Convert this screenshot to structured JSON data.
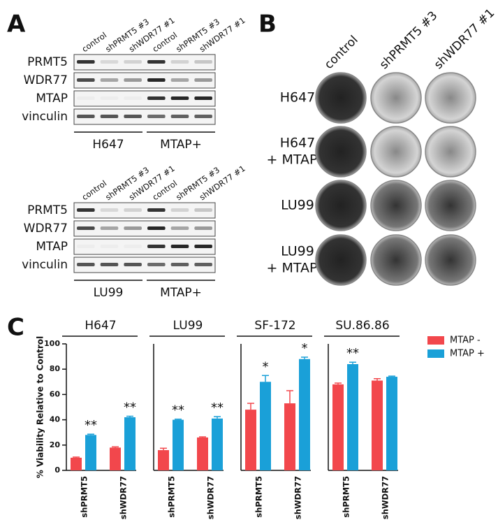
{
  "panel_labels": [
    "A",
    "B",
    "C"
  ],
  "panel_a": {
    "blots": [
      {
        "lanes": [
          "control",
          "shPRMT5 #3",
          "shWDR77 #1",
          "control",
          "shPRMT5 #3",
          "shWDR77 #1"
        ],
        "rows": [
          "PRMT5",
          "WDR77",
          "MTAP",
          "vinculin"
        ],
        "groups": [
          "H647",
          "MTAP+"
        ]
      },
      {
        "lanes": [
          "control",
          "shPRMT5 #3",
          "shWDR77 #1",
          "control",
          "shPRMT5 #3",
          "shWDR77 #1"
        ],
        "rows": [
          "PRMT5",
          "WDR77",
          "MTAP",
          "vinculin"
        ],
        "groups": [
          "LU99",
          "MTAP+"
        ]
      }
    ]
  },
  "panel_b": {
    "columns": [
      "control",
      "shPRMT5 #3",
      "shWDR77 #1"
    ],
    "rows": [
      [
        "H647"
      ],
      [
        "H647",
        "+ MTAP"
      ],
      [
        "LU99"
      ],
      [
        "LU99",
        "+ MTAP"
      ]
    ]
  },
  "chart_data": {
    "type": "bar",
    "ylabel": "% Viability Relative to Control",
    "ylim": [
      0,
      100
    ],
    "yticks": [
      0,
      20,
      40,
      60,
      80,
      100
    ],
    "series": [
      {
        "name": "MTAP -",
        "color": "#f2474c"
      },
      {
        "name": "MTAP +",
        "color": "#1aa0d8"
      }
    ],
    "groups": [
      {
        "title": "H647",
        "categories": [
          "shPRMT5",
          "shWDR77"
        ],
        "series": [
          {
            "values": [
              10,
              18
            ],
            "errors": [
              0.5,
              0.6
            ]
          },
          {
            "values": [
              28,
              42
            ],
            "errors": [
              0.6,
              0.8
            ]
          }
        ],
        "annotations": [
          "**",
          "**"
        ]
      },
      {
        "title": "LU99",
        "categories": [
          "shPRMT5",
          "shWDR77"
        ],
        "series": [
          {
            "values": [
              16,
              26
            ],
            "errors": [
              1.5,
              0.5
            ]
          },
          {
            "values": [
              40,
              41
            ],
            "errors": [
              0.5,
              1.5
            ]
          }
        ],
        "annotations": [
          "**",
          "**"
        ]
      },
      {
        "title": "SF-172",
        "categories": [
          "shPRMT5",
          "shWDR77"
        ],
        "series": [
          {
            "values": [
              48,
              53
            ],
            "errors": [
              5,
              10
            ]
          },
          {
            "values": [
              70,
              88
            ],
            "errors": [
              5,
              1.5
            ]
          }
        ],
        "annotations": [
          "*",
          "*"
        ]
      },
      {
        "title": "SU.86.86",
        "categories": [
          "shPRMT5",
          "shWDR77"
        ],
        "series": [
          {
            "values": [
              68,
              71
            ],
            "errors": [
              1,
              1.5
            ]
          },
          {
            "values": [
              84,
              74
            ],
            "errors": [
              1.5,
              0.5
            ]
          }
        ],
        "annotations": [
          "**",
          null
        ]
      }
    ]
  }
}
